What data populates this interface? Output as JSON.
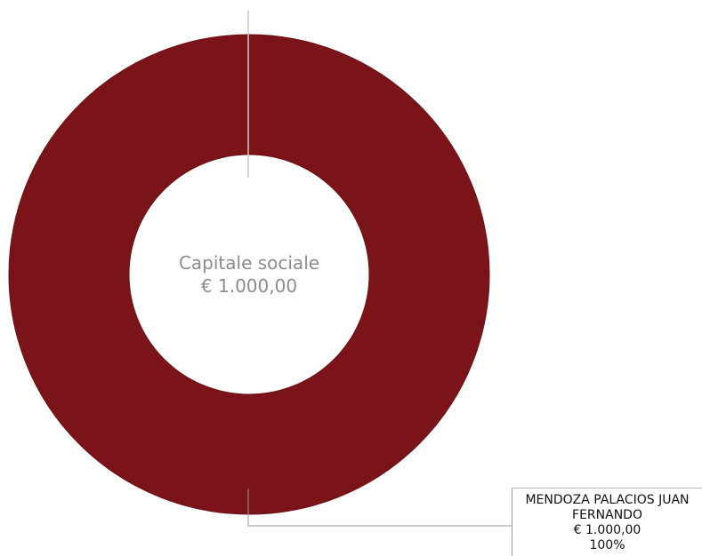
{
  "chart_data": {
    "type": "pie",
    "variant": "donut",
    "center_label": {
      "title": "Capitale sociale",
      "value": "€ 1.000,00"
    },
    "slices": [
      {
        "name": "MENDOZA PALACIOS JUAN FERNANDO",
        "value": 1000.0,
        "value_label": "€ 1.000,00",
        "percent": 100,
        "percent_label": "100%",
        "color": "#7b1419"
      }
    ],
    "callout": {
      "line1": "MENDOZA PALACIOS JUAN",
      "line2": "FERNANDO",
      "line3": "€ 1.000,00",
      "line4": "100%"
    }
  }
}
